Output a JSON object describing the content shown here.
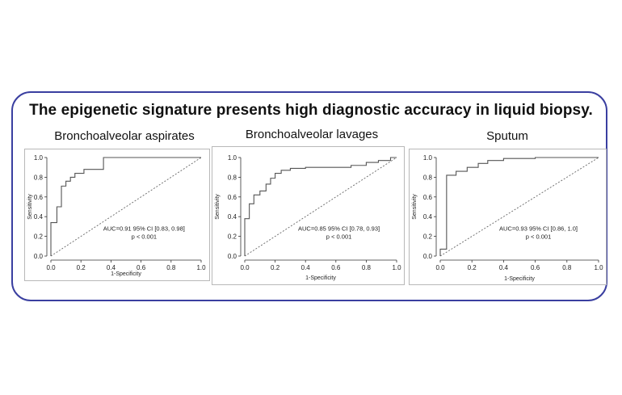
{
  "headline": "The epigenetic signature presents high diagnostic accuracy  in liquid biopsy.",
  "chart_data": [
    {
      "type": "line",
      "title": "Bronchoalveolar aspirates",
      "xlabel": "1-Specificity",
      "ylabel": "Sensitivity",
      "xlim": [
        0,
        1
      ],
      "ylim": [
        0,
        1
      ],
      "xticks": [
        "0.0",
        "0.2",
        "0.4",
        "0.6",
        "0.8",
        "1.0"
      ],
      "yticks": [
        "0.0",
        "0.2",
        "0.4",
        "0.6",
        "0.8",
        "1.0"
      ],
      "annotation": [
        "AUC=0.91   95% CI [0.83, 0.98]",
        "p < 0.001"
      ],
      "series": [
        {
          "x": [
            0,
            0,
            0.04,
            0.04,
            0.07,
            0.07,
            0.1,
            0.1,
            0.13,
            0.13,
            0.16,
            0.16,
            0.22,
            0.22,
            0.35,
            0.35,
            1.0
          ],
          "y": [
            0,
            0.34,
            0.34,
            0.5,
            0.5,
            0.71,
            0.71,
            0.76,
            0.76,
            0.8,
            0.8,
            0.84,
            0.84,
            0.88,
            0.88,
            1.0,
            1.0
          ]
        }
      ]
    },
    {
      "type": "line",
      "title": "Bronchoalveolar lavages",
      "xlabel": "1-Specificity",
      "ylabel": "Sensitivity",
      "xlim": [
        0,
        1
      ],
      "ylim": [
        0,
        1
      ],
      "xticks": [
        "0.0",
        "0.2",
        "0.4",
        "0.6",
        "0.8",
        "1.0"
      ],
      "yticks": [
        "0.0",
        "0.2",
        "0.4",
        "0.6",
        "0.8",
        "1.0"
      ],
      "annotation": [
        "AUC=0.85   95% CI [0.78, 0.93]",
        "p < 0.001"
      ],
      "series": [
        {
          "x": [
            0,
            0,
            0.03,
            0.03,
            0.06,
            0.06,
            0.1,
            0.1,
            0.14,
            0.14,
            0.17,
            0.17,
            0.2,
            0.2,
            0.24,
            0.24,
            0.3,
            0.3,
            0.4,
            0.4,
            0.7,
            0.7,
            0.8,
            0.8,
            0.88,
            0.88,
            0.96,
            0.96,
            1.0
          ],
          "y": [
            0,
            0.38,
            0.38,
            0.53,
            0.53,
            0.62,
            0.62,
            0.66,
            0.66,
            0.73,
            0.73,
            0.79,
            0.79,
            0.84,
            0.84,
            0.87,
            0.87,
            0.89,
            0.89,
            0.9,
            0.9,
            0.92,
            0.92,
            0.95,
            0.95,
            0.97,
            0.97,
            1.0,
            1.0
          ]
        }
      ]
    },
    {
      "type": "line",
      "title": "Sputum",
      "xlabel": "1-Specificity",
      "ylabel": "Sensitivity",
      "xlim": [
        0,
        1
      ],
      "ylim": [
        0,
        1
      ],
      "xticks": [
        "0.0",
        "0.2",
        "0.4",
        "0.6",
        "0.8",
        "1.0"
      ],
      "yticks": [
        "0.0",
        "0.2",
        "0.4",
        "0.6",
        "0.8",
        "1.0"
      ],
      "annotation": [
        "AUC=0.93   95% CI [0.86, 1.0]",
        "p < 0.001"
      ],
      "series": [
        {
          "x": [
            0,
            0,
            0.04,
            0.04,
            0.1,
            0.1,
            0.17,
            0.17,
            0.24,
            0.24,
            0.3,
            0.3,
            0.4,
            0.4,
            0.6,
            0.6,
            1.0
          ],
          "y": [
            0,
            0.07,
            0.07,
            0.82,
            0.82,
            0.86,
            0.86,
            0.9,
            0.9,
            0.94,
            0.94,
            0.97,
            0.97,
            0.99,
            0.99,
            1.0,
            1.0
          ]
        }
      ]
    }
  ]
}
